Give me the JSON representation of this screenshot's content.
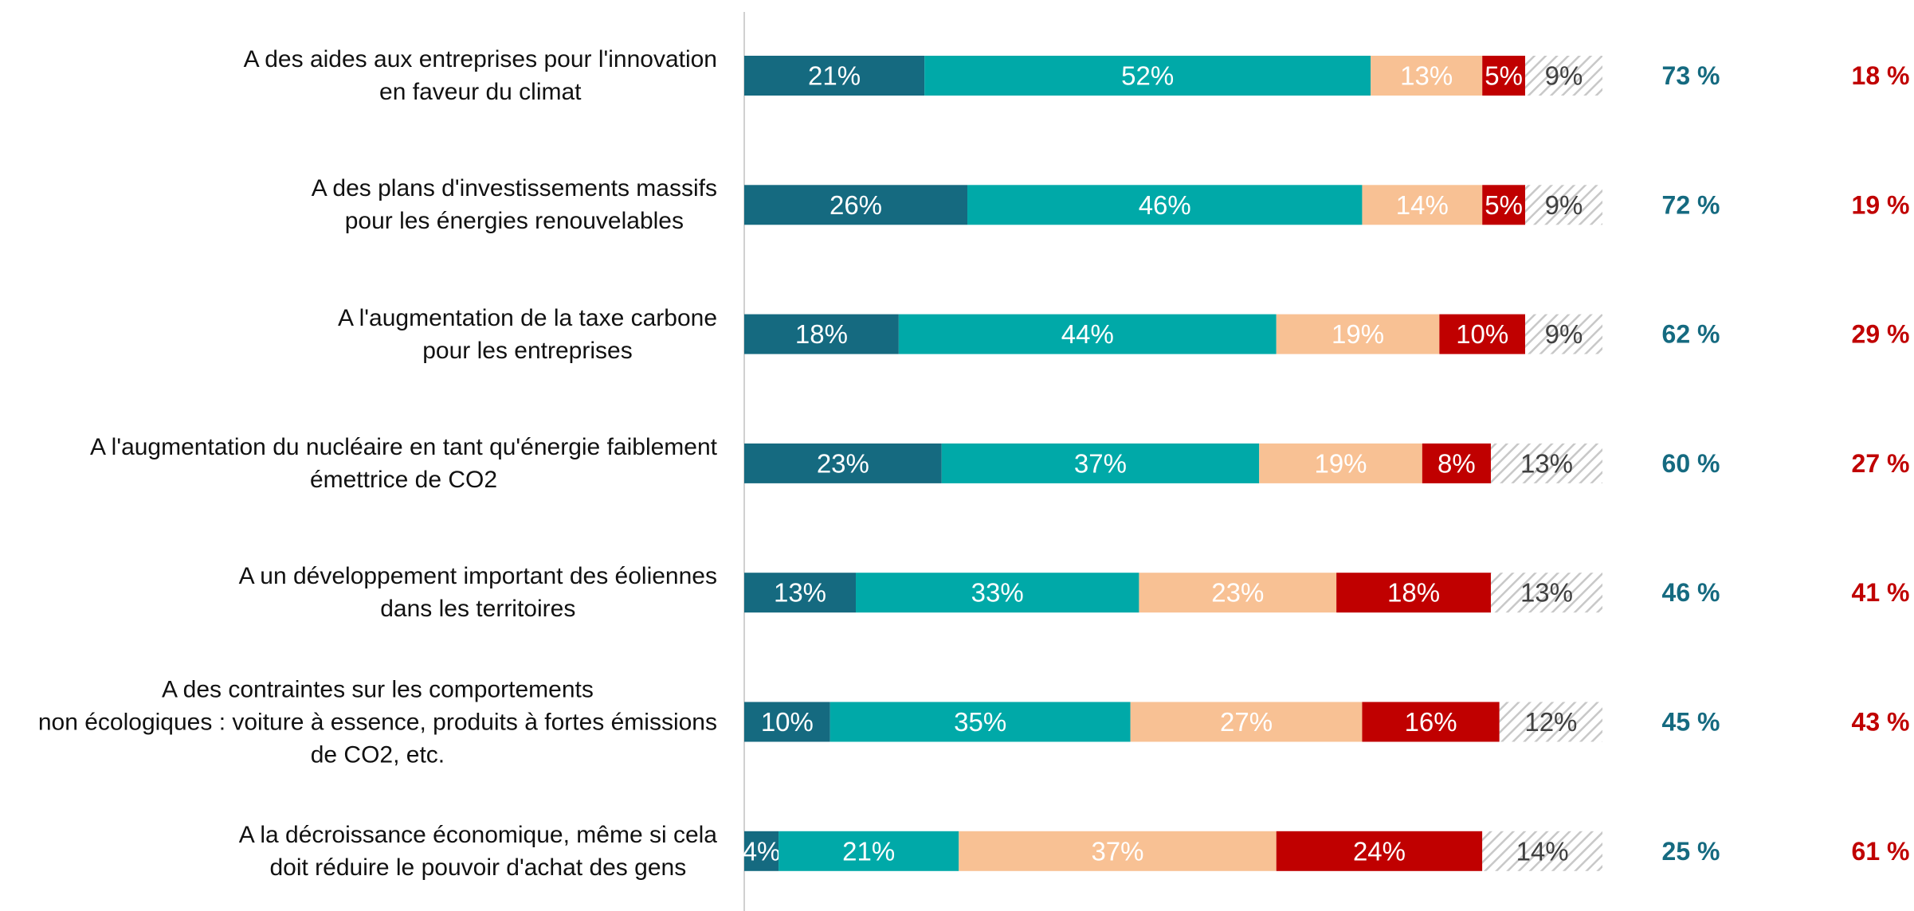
{
  "chart_data": {
    "type": "stacked-bar-horizontal",
    "categories": [
      "A des aides aux entreprises pour l'innovation\nen faveur du climat",
      "A des plans d'investissements massifs\npour les énergies renouvelables",
      "A l'augmentation de la taxe carbone\npour les entreprises",
      "A l'augmentation du nucléaire en tant qu'énergie faiblement\némettrice de CO2",
      "A un développement important des éoliennes\ndans les territoires",
      "A des contraintes sur les comportements\nnon écologiques : voiture à essence, produits à fortes émissions\nde CO2, etc.",
      "A la décroissance économique, même si cela\ndoit réduire le pouvoir d'achat des gens"
    ],
    "xlim": [
      0,
      100
    ],
    "series": [
      {
        "color": "#156a80",
        "label_color": "#ffffff",
        "values": [
          21,
          26,
          18,
          23,
          13,
          10,
          4
        ],
        "value_labels": [
          "21%",
          "26%",
          "18%",
          "23%",
          "13%",
          "10%",
          "4%"
        ]
      },
      {
        "color": "#00a9a8",
        "label_color": "#ffffff",
        "values": [
          52,
          46,
          44,
          37,
          33,
          35,
          21
        ],
        "value_labels": [
          "52%",
          "46%",
          "44%",
          "37%",
          "33%",
          "35%",
          "21%"
        ]
      },
      {
        "color": "#f8c194",
        "label_color": "#ffffff",
        "values": [
          13,
          14,
          19,
          19,
          23,
          27,
          37
        ],
        "value_labels": [
          "13%",
          "14%",
          "19%",
          "19%",
          "23%",
          "27%",
          "37%"
        ]
      },
      {
        "color": "#c00000",
        "label_color": "#ffffff",
        "values": [
          5,
          5,
          10,
          8,
          18,
          16,
          24
        ],
        "value_labels": [
          "5%",
          "5%",
          "10%",
          "8%",
          "18%",
          "16%",
          "24%"
        ]
      },
      {
        "color": "#d0d0d0",
        "pattern": "hatch",
        "label_color": "#404040",
        "values": [
          9,
          9,
          9,
          13,
          13,
          12,
          14
        ],
        "value_labels": [
          "9%",
          "9%",
          "9%",
          "13%",
          "13%",
          "12%",
          "14%"
        ]
      }
    ],
    "totals": [
      {
        "color": "#156a80",
        "values": [
          73,
          72,
          62,
          60,
          46,
          45,
          25
        ],
        "value_labels": [
          "73 %",
          "72 %",
          "62 %",
          "60 %",
          "46 %",
          "45 %",
          "25 %"
        ]
      },
      {
        "color": "#c00000",
        "values": [
          18,
          19,
          29,
          27,
          41,
          43,
          61
        ],
        "value_labels": [
          "18 %",
          "19 %",
          "29 %",
          "27 %",
          "41 %",
          "43 %",
          "61 %"
        ]
      }
    ]
  }
}
